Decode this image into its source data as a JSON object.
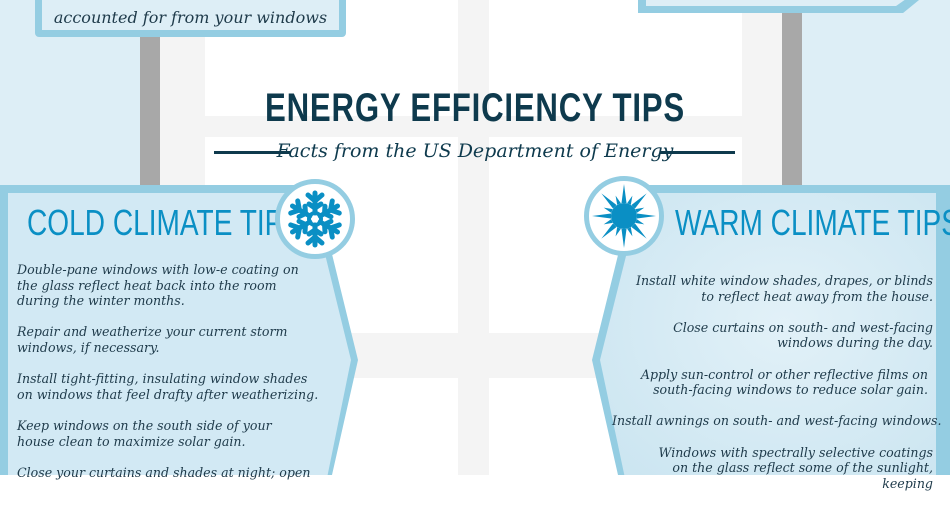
{
  "top_sign_left": {
    "text": "accounted for from your windows"
  },
  "header": {
    "title": "ENERGY EFFICIENCY TIPS",
    "subtitle": "Facts from the US Department of Energy"
  },
  "colors": {
    "accent": "#0a8fc4",
    "title": "#0e3a4d",
    "panel_border": "#94cde2",
    "panel_fill": "#d2e9f4",
    "sky": "#ddeef6"
  },
  "cold": {
    "title": "COLD CLIMATE TIPS",
    "icon": "snowflake-icon",
    "tips": [
      "Double-pane windows with low-e coating on the glass reflect heat back into the room during the winter months.",
      "Repair and weatherize your current storm windows, if necessary.",
      "Install tight-fitting, insulating window shades on windows that feel drafty after weatherizing.",
      "Keep windows on the south side of your house clean to maximize solar gain.",
      "Close your curtains and shades at night; open"
    ]
  },
  "warm": {
    "title": "WARM CLIMATE TIPS",
    "icon": "sun-icon",
    "tips": [
      "Install white window shades, drapes, or blinds to reflect heat away from the house.",
      "Close curtains on south- and west-facing windows during the day.",
      "Apply sun-control or other reflective films on south-facing windows to reduce solar gain.",
      "Install awnings on south- and west-facing windows.",
      "Windows with spectrally selective coatings on the glass reflect some of the sunlight, keeping"
    ]
  }
}
